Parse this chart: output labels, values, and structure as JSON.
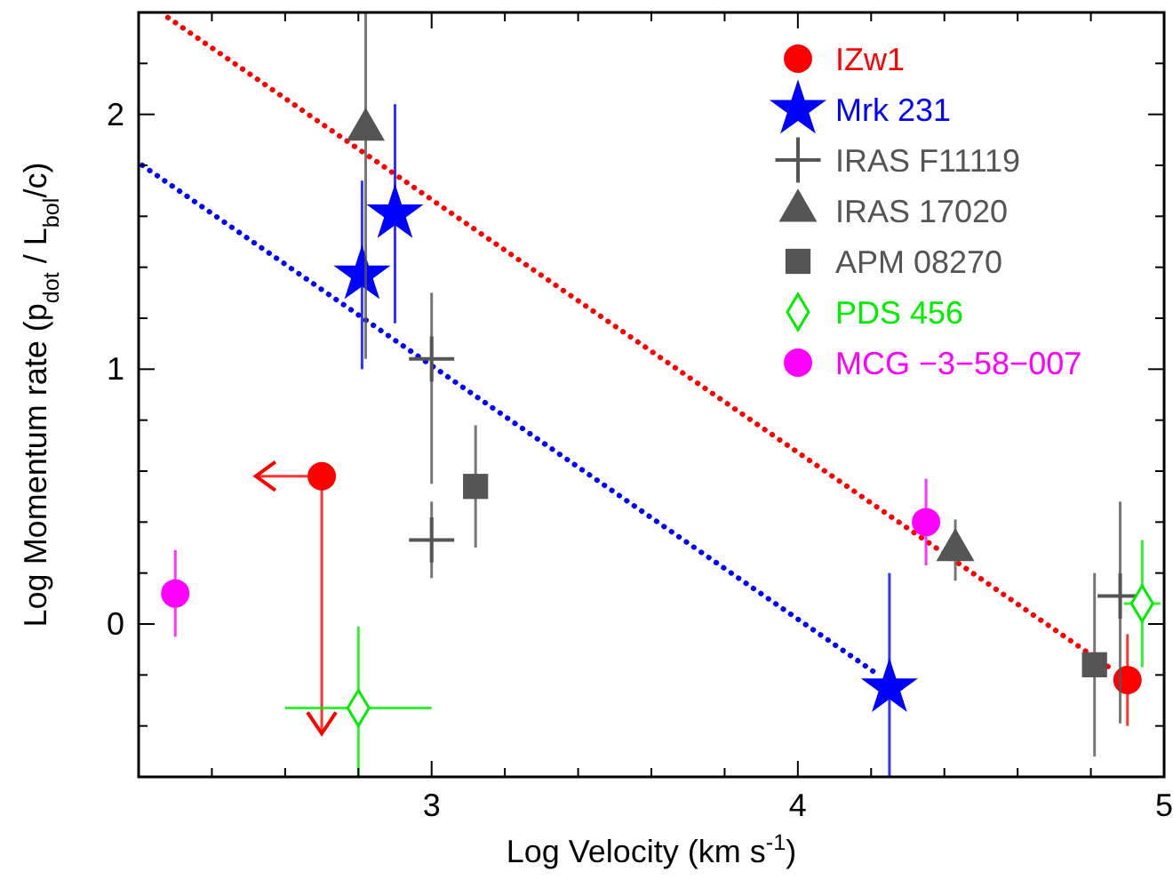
{
  "chart_data": {
    "type": "scatter",
    "xlabel": "Log Velocity (km s$^{-1}$)",
    "ylabel": "Log Momentum rate (p$_{dot}$ / L$_{bol}$/c)",
    "xlim": [
      2.2,
      5
    ],
    "ylim": [
      -0.6,
      2.4
    ],
    "xticks": [
      {
        "value": 2.2,
        "label": null
      },
      {
        "value": 2.4,
        "label": null
      },
      {
        "value": 2.6,
        "label": null
      },
      {
        "value": 2.8,
        "label": null
      },
      3,
      {
        "value": 3.2,
        "label": null
      },
      {
        "value": 3.4,
        "label": null
      },
      {
        "value": 3.6,
        "label": null
      },
      {
        "value": 3.8,
        "label": null
      },
      4,
      {
        "value": 4.2,
        "label": null
      },
      {
        "value": 4.4,
        "label": null
      },
      {
        "value": 4.6,
        "label": null
      },
      {
        "value": 4.8,
        "label": null
      },
      5
    ],
    "yticks": [
      {
        "value": -0.4,
        "label": null
      },
      {
        "value": -0.2,
        "label": null
      },
      0,
      {
        "value": 0.2,
        "label": null
      },
      {
        "value": 0.4,
        "label": null
      },
      {
        "value": 0.6,
        "label": null
      },
      {
        "value": 0.8,
        "label": null
      },
      1,
      {
        "value": 1.2,
        "label": null
      },
      {
        "value": 1.4,
        "label": null
      },
      {
        "value": 1.6,
        "label": null
      },
      {
        "value": 1.8,
        "label": null
      },
      2,
      {
        "value": 2.2,
        "label": null
      }
    ],
    "grid": false,
    "legend": "top right",
    "series": [
      {
        "type": "line",
        "color": "#ff0000",
        "line_style": "dotted",
        "marker": "none",
        "x": [
          2.28,
          4.86
        ],
        "values": [
          2.38,
          -0.18
        ]
      },
      {
        "type": "line",
        "color": "#0000ff",
        "line_style": "dotted",
        "marker": "none",
        "x": [
          2.21,
          4.21
        ],
        "values": [
          1.8,
          -0.19
        ]
      },
      {
        "name": "IZw1",
        "color": "#ff0000",
        "marker": "circle",
        "x": [
          2.7,
          4.9
        ],
        "values": [
          0.58,
          -0.22
        ],
        "errors": [
          [
            -0.43,
            0.58
          ],
          0.18
        ],
        "xerrors": [
          [
            2.52,
            2.7
          ],
          null
        ]
      },
      {
        "name": "Mrk 231",
        "color": "#0000ff",
        "marker": "star",
        "x": [
          2.81,
          2.9,
          4.25
        ],
        "values": [
          1.37,
          1.61,
          -0.25
        ],
        "errors": [
          0.37,
          0.43,
          [
            -0.6,
            0.2
          ]
        ]
      },
      {
        "name": "IRAS F11119",
        "color": "#555555",
        "marker": "cross",
        "x": [
          3.0,
          3.0,
          4.88
        ],
        "values": [
          1.04,
          0.33,
          0.11
        ],
        "errors": [
          [
            0.55,
            1.3
          ],
          0.15,
          [
            -0.39,
            0.48
          ]
        ]
      },
      {
        "name": "IRAS 17020",
        "color": "#555555",
        "marker": "triangle",
        "x": [
          2.82,
          4.43
        ],
        "values": [
          1.94,
          0.29
        ],
        "errors": [
          [
            1.04,
            2.4
          ],
          0.12
        ]
      },
      {
        "name": "APM 08270",
        "color": "#555555",
        "marker": "square",
        "x": [
          3.12,
          4.81
        ],
        "values": [
          0.54,
          -0.16
        ],
        "errors": [
          0.24,
          0.36
        ]
      },
      {
        "name": "PDS 456",
        "color": "#00ee00",
        "marker": "diamond",
        "x": [
          2.8,
          4.94
        ],
        "values": [
          -0.33,
          0.08
        ],
        "errors": [
          [
            -0.6,
            -0.01
          ],
          0.25
        ],
        "xerrors": [
          0.2,
          0.05
        ]
      },
      {
        "name": "MCG −3−58−007",
        "color": "#ff00ff",
        "marker": "circle",
        "x": [
          2.3,
          4.35
        ],
        "values": [
          0.12,
          0.4
        ],
        "errors": [
          0.17,
          0.17
        ]
      }
    ]
  }
}
